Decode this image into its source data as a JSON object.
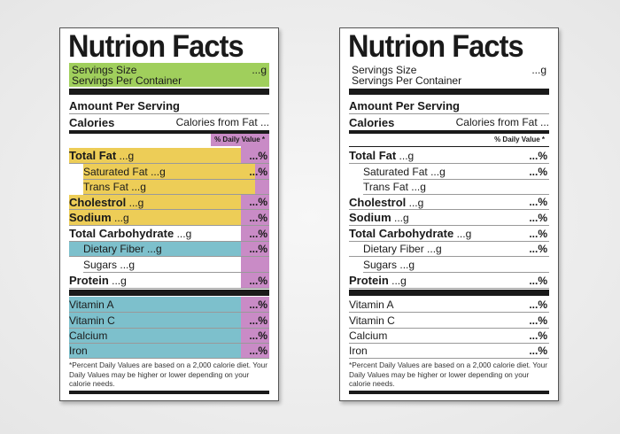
{
  "colors": {
    "servings": "#a0cf5c",
    "fat_minerals": "#edcd57",
    "daily_value": "#c98bc6",
    "vitamins": "#7dc0cc",
    "bar": "#1a1a1a"
  },
  "labels": [
    {
      "variant": "colored"
    },
    {
      "variant": "plain"
    }
  ],
  "label": {
    "title": "Nutrion Facts",
    "serving_size": "Servings Size",
    "serving_size_value": "...g",
    "servings_per_container": "Servings Per Container",
    "amount_per_serving": "Amount Per Serving",
    "calories": "Calories",
    "calories_from_fat": "Calories from Fat ...",
    "daily_value_header": "% Daily Value *",
    "nutrients": [
      {
        "name": "Total Fat",
        "amount": "...g",
        "dv": "...%",
        "bold": true,
        "sub": false,
        "color": "fat_minerals"
      },
      {
        "name": "Saturated Fat",
        "amount": "...g",
        "dv": "...%",
        "bold": false,
        "sub": true,
        "color": "fat_minerals"
      },
      {
        "name": "Trans Fat",
        "amount": "...g",
        "dv": "",
        "bold": false,
        "sub": true,
        "color": "fat_minerals"
      },
      {
        "name": "Cholestrol",
        "amount": "...g",
        "dv": "...%",
        "bold": true,
        "sub": false,
        "color": "fat_minerals"
      },
      {
        "name": "Sodium",
        "amount": "...g",
        "dv": "...%",
        "bold": true,
        "sub": false,
        "color": "fat_minerals"
      },
      {
        "name": "Total Carbohydrate",
        "amount": "...g",
        "dv": "...%",
        "bold": true,
        "sub": false,
        "color": ""
      },
      {
        "name": "Dietary Fiber",
        "amount": "...g",
        "dv": "...%",
        "bold": false,
        "sub": true,
        "color": "vitamins"
      },
      {
        "name": "Sugars",
        "amount": "...g",
        "dv": "",
        "bold": false,
        "sub": true,
        "color": ""
      },
      {
        "name": "Protein",
        "amount": "...g",
        "dv": "...%",
        "bold": true,
        "sub": false,
        "color": ""
      }
    ],
    "vitamins": [
      {
        "name": "Vitamin A",
        "dv": "...%"
      },
      {
        "name": "Vitamin C",
        "dv": "...%"
      },
      {
        "name": "Calcium",
        "dv": "...%"
      },
      {
        "name": "Iron",
        "dv": "...%"
      }
    ],
    "footnote": "*Percent Daily Values are based on a 2,000 calorie diet. Your Daily Values may be higher or lower depending on your calorie needs."
  }
}
